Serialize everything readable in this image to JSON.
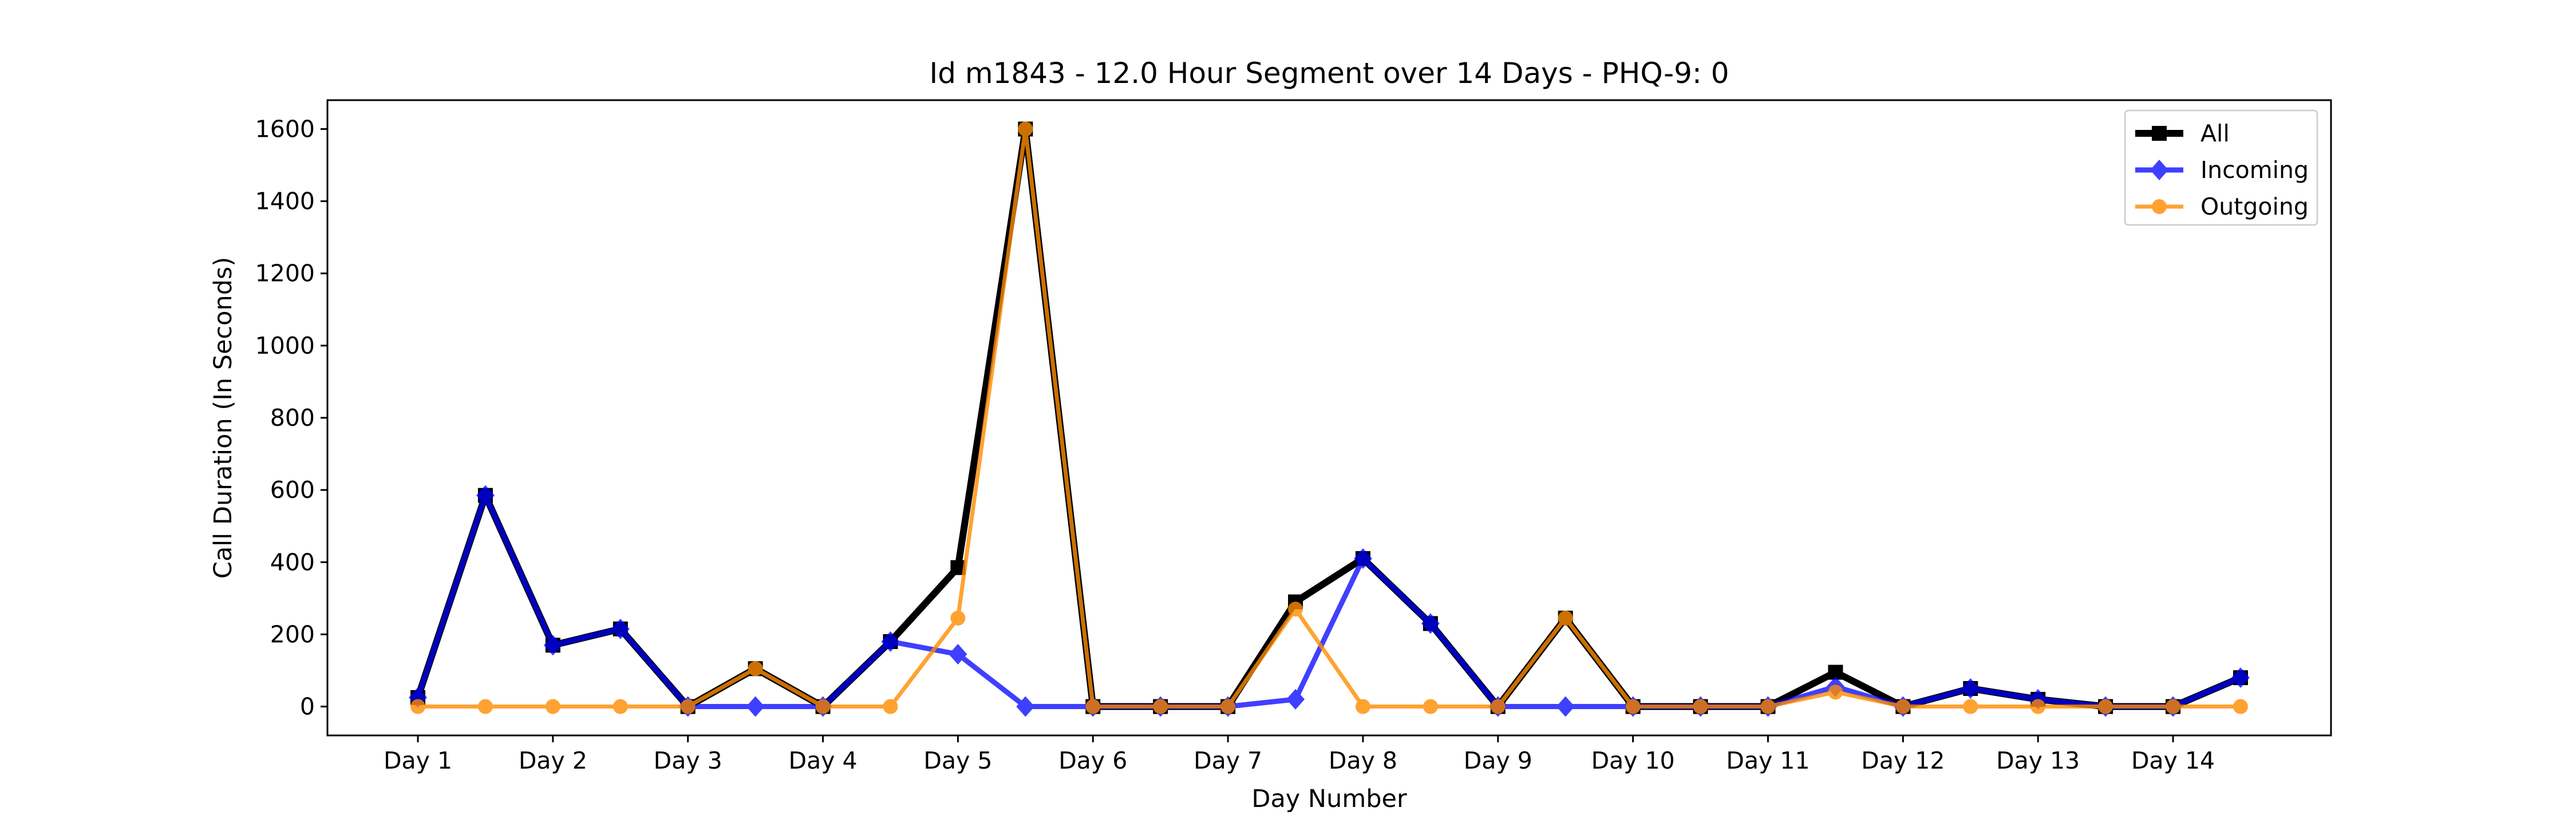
{
  "chart_data": {
    "type": "line",
    "title": "Id m1843 - 12.0 Hour Segment over 14 Days - PHQ-9: 0",
    "xlabel": "Day Number",
    "ylabel": "Call Duration (In Seconds)",
    "x_tick_labels": [
      "Day 1",
      "Day 2",
      "Day 3",
      "Day 4",
      "Day 5",
      "Day 6",
      "Day 7",
      "Day 8",
      "Day 9",
      "Day 10",
      "Day 11",
      "Day 12",
      "Day 13",
      "Day 14"
    ],
    "y_ticks": [
      0,
      200,
      400,
      600,
      800,
      1000,
      1200,
      1400,
      1600
    ],
    "xlim": [
      0.33,
      15.17
    ],
    "ylim": [
      -80,
      1680
    ],
    "grid": false,
    "legend_position": "top-right",
    "x": [
      1,
      1.5,
      2,
      2.5,
      3,
      3.5,
      4,
      4.5,
      5,
      5.5,
      6,
      6.5,
      7,
      7.5,
      8,
      8.5,
      9,
      9.5,
      10,
      10.5,
      11,
      11.5,
      12,
      12.5,
      13,
      13.5,
      14,
      14.5
    ],
    "series": [
      {
        "name": "All",
        "color": "#000000",
        "marker": "square",
        "values": [
          25,
          585,
          170,
          215,
          0,
          105,
          0,
          180,
          385,
          1600,
          0,
          0,
          0,
          290,
          410,
          230,
          0,
          245,
          0,
          0,
          0,
          95,
          0,
          50,
          20,
          0,
          0,
          80
        ]
      },
      {
        "name": "Incoming",
        "color": "#0000ff",
        "marker": "diamond",
        "values": [
          25,
          585,
          170,
          215,
          0,
          0,
          0,
          180,
          145,
          0,
          0,
          0,
          0,
          20,
          410,
          230,
          0,
          0,
          0,
          0,
          0,
          55,
          0,
          50,
          20,
          0,
          0,
          80
        ]
      },
      {
        "name": "Outgoing",
        "color": "#ff8c00",
        "marker": "circle",
        "values": [
          0,
          0,
          0,
          0,
          0,
          105,
          0,
          0,
          245,
          1600,
          0,
          0,
          0,
          270,
          0,
          0,
          0,
          245,
          0,
          0,
          0,
          40,
          0,
          0,
          0,
          0,
          0,
          0
        ]
      }
    ]
  }
}
